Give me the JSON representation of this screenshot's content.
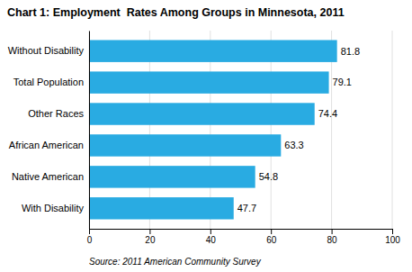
{
  "chart_data": {
    "type": "bar",
    "orientation": "horizontal",
    "title": "Chart 1: Employment  Rates Among Groups in Minnesota, 2011",
    "categories": [
      "Without Disability",
      "Total Population",
      "Other Races",
      "African American",
      "Native American",
      "With Disability"
    ],
    "values": [
      81.8,
      79.1,
      74.4,
      63.3,
      54.8,
      47.7
    ],
    "color": "#29abe2",
    "xlim": [
      0,
      100
    ],
    "xticks": [
      0,
      20,
      40,
      60,
      80,
      100
    ],
    "grid": true,
    "data_labels": true,
    "annotations": [
      "Source: 2011 American Community Survey"
    ]
  }
}
